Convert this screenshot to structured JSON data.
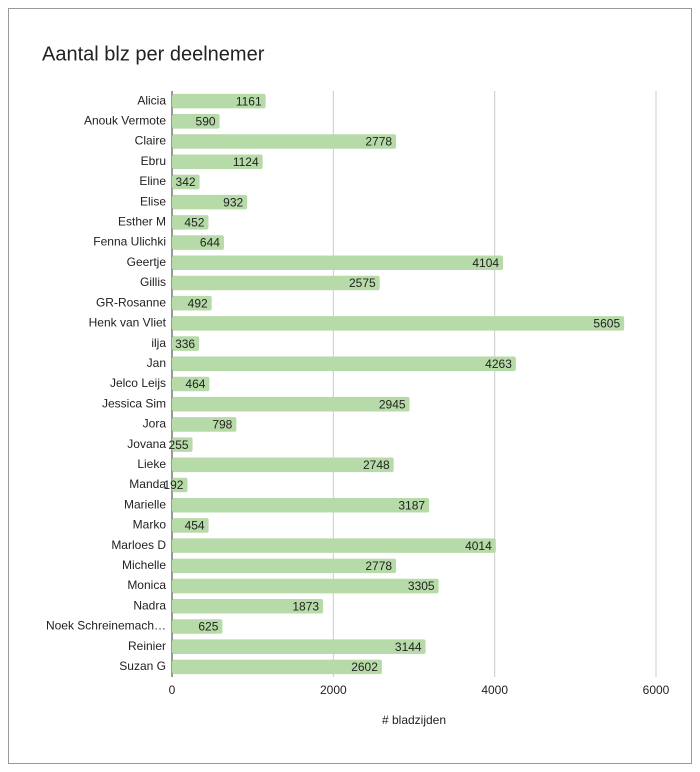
{
  "chart_data": {
    "type": "bar",
    "orientation": "horizontal",
    "title": "Aantal blz per deelnemer",
    "x_axis_label": "# bladzijden",
    "categories": [
      "Alicia",
      "Anouk Vermote",
      "Claire",
      "Ebru",
      "Eline",
      "Elise",
      "Esther M",
      "Fenna Ulichki",
      "Geertje",
      "Gillis",
      "GR-Rosanne",
      "Henk van Vliet",
      "ilja",
      "Jan",
      "Jelco Leijs",
      "Jessica Sim",
      "Jora",
      "Jovana",
      "Lieke",
      "Manda",
      "Marielle",
      "Marko",
      "Marloes D",
      "Michelle",
      "Monica",
      "Nadra",
      "Noek Schreinemach…",
      "Reinier",
      "Suzan G"
    ],
    "values": [
      1161,
      590,
      2778,
      1124,
      342,
      932,
      452,
      644,
      4104,
      2575,
      492,
      5605,
      336,
      4263,
      464,
      2945,
      798,
      255,
      2748,
      192,
      3187,
      454,
      4014,
      2778,
      3305,
      1873,
      625,
      3144,
      2602
    ],
    "color": "#b7dba8",
    "xlim": [
      0,
      6000
    ],
    "xticks": [
      0,
      2000,
      4000,
      6000
    ],
    "grid": true
  }
}
